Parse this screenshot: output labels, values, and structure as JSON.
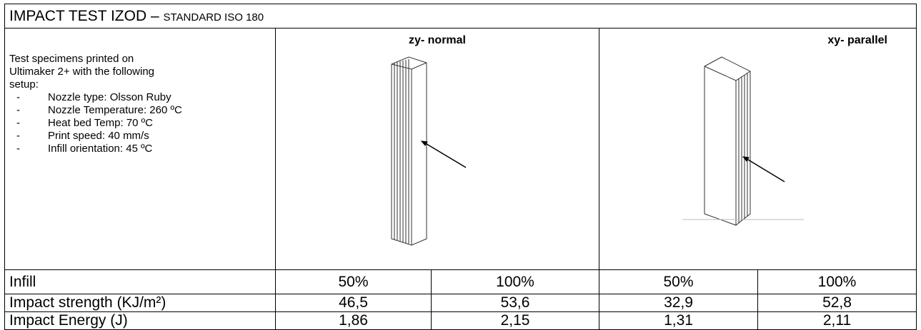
{
  "header": {
    "title_main": "IMPACT TEST IZOD – ",
    "title_sub": "STANDARD ISO 180"
  },
  "description": {
    "intro": "Test specimens printed on Ultimaker 2+ with the following setup:",
    "items": [
      "Nozzle type: Olsson Ruby",
      "Nozzle Temperature: 260 ºC",
      "Heat bed Temp: 70 ºC",
      "Print speed: 40 mm/s",
      "Infill orientation: 45 ºC"
    ]
  },
  "orientations": [
    "zy- normal",
    "xy- parallel"
  ],
  "table": {
    "rows": [
      [
        "Infill",
        "50%",
        "100%",
        "50%",
        "100%"
      ],
      [
        "Impact strength (KJ/m²)",
        "46,5",
        "53,6",
        "32,9",
        "52,8"
      ],
      [
        "Impact Energy (J)",
        "1,86",
        "2,15",
        "1,31",
        "2,11"
      ]
    ]
  }
}
